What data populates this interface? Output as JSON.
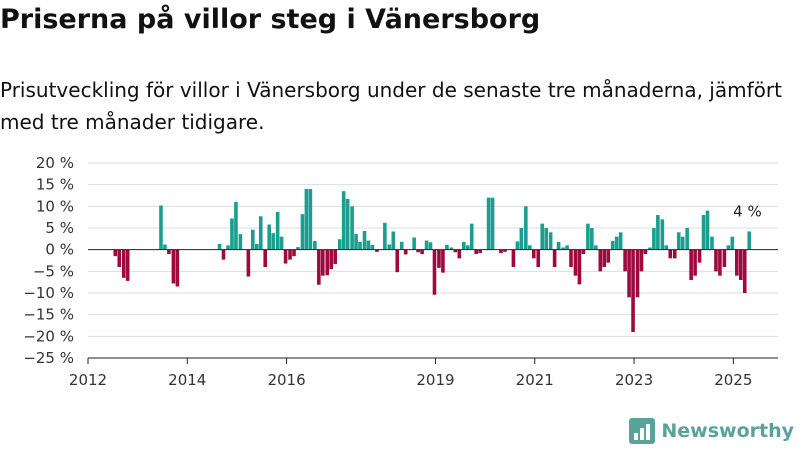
{
  "title": "Priserna på villor steg i Vänersborg",
  "subtitle": "Prisutveckling för villor i Vänersborg under de senaste tre månaderna, jämfört med tre månader tidigare.",
  "brand": {
    "name": "Newsworthy",
    "color": "#5aa39a"
  },
  "chart_data": {
    "type": "bar",
    "title": "Priserna på villor steg i Vänersborg",
    "subtitle": "Prisutveckling för villor i Vänersborg under de senaste tre månaderna, jämfört med tre månader tidigare.",
    "xlabel": "",
    "ylabel": "",
    "ylim": [
      -25,
      20
    ],
    "yticks": [
      20,
      15,
      10,
      5,
      0,
      -5,
      -10,
      -15,
      -20,
      -25
    ],
    "ytick_labels": [
      "20 %",
      "15 %",
      "10 %",
      "5 %",
      "0 %",
      "−5 %",
      "−10 %",
      "−15 %",
      "−20 %",
      "−25 %"
    ],
    "xlim": [
      2012,
      2025.9
    ],
    "xticks": [
      2012,
      2014,
      2016,
      2019,
      2021,
      2023,
      2025
    ],
    "xtick_labels": [
      "2012",
      "2014",
      "2016",
      "2019",
      "2021",
      "2023",
      "2025"
    ],
    "grid": true,
    "colors": {
      "positive": "#1a9e8f",
      "negative": "#9e0a3e"
    },
    "annotation": {
      "text": "4 %",
      "x": 2025.25,
      "y": 4
    },
    "x": [
      2012.55,
      2012.63,
      2012.72,
      2012.8,
      2013.47,
      2013.55,
      2013.63,
      2013.72,
      2013.8,
      2014.65,
      2014.73,
      2014.82,
      2014.9,
      2014.98,
      2015.07,
      2015.23,
      2015.32,
      2015.4,
      2015.48,
      2015.57,
      2015.65,
      2015.73,
      2015.82,
      2015.9,
      2015.98,
      2016.07,
      2016.15,
      2016.23,
      2016.32,
      2016.4,
      2016.48,
      2016.57,
      2016.65,
      2016.73,
      2016.82,
      2016.9,
      2016.98,
      2017.07,
      2017.15,
      2017.23,
      2017.32,
      2017.4,
      2017.48,
      2017.57,
      2017.65,
      2017.73,
      2017.82,
      2017.98,
      2018.07,
      2018.15,
      2018.23,
      2018.32,
      2018.4,
      2018.57,
      2018.65,
      2018.73,
      2018.82,
      2018.9,
      2018.98,
      2019.07,
      2019.15,
      2019.23,
      2019.32,
      2019.4,
      2019.48,
      2019.57,
      2019.65,
      2019.73,
      2019.82,
      2019.9,
      2020.07,
      2020.15,
      2020.32,
      2020.4,
      2020.57,
      2020.65,
      2020.73,
      2020.82,
      2020.9,
      2020.98,
      2021.07,
      2021.15,
      2021.23,
      2021.32,
      2021.4,
      2021.48,
      2021.57,
      2021.65,
      2021.73,
      2021.82,
      2021.9,
      2021.98,
      2022.07,
      2022.15,
      2022.23,
      2022.32,
      2022.4,
      2022.48,
      2022.57,
      2022.65,
      2022.73,
      2022.82,
      2022.9,
      2022.98,
      2023.07,
      2023.15,
      2023.23,
      2023.32,
      2023.4,
      2023.48,
      2023.57,
      2023.65,
      2023.73,
      2023.82,
      2023.9,
      2023.98,
      2024.07,
      2024.15,
      2024.23,
      2024.32,
      2024.4,
      2024.48,
      2024.57,
      2024.65,
      2024.73,
      2024.82,
      2024.9,
      2024.98,
      2025.07,
      2025.15,
      2025.23,
      2025.32
    ],
    "values": [
      -1.5,
      -4,
      -6.5,
      -7.2,
      10.2,
      1.2,
      -1,
      -7.8,
      -8.5,
      1.3,
      -2.3,
      1,
      7.2,
      11,
      3.6,
      -6.2,
      4.6,
      1.3,
      7.7,
      -4,
      5.8,
      3.8,
      8.7,
      3,
      -3.2,
      -2.3,
      -1.5,
      0.6,
      8.2,
      14,
      14,
      2,
      -8.1,
      -6,
      -5.9,
      -4.5,
      -3.3,
      2.4,
      13.5,
      11.7,
      10,
      3.6,
      1.8,
      4.3,
      2.1,
      1.1,
      -0.5,
      6.2,
      1.2,
      4.2,
      -5.2,
      1.8,
      -1.1,
      2.8,
      -0.6,
      -1,
      2.1,
      1.7,
      -10.4,
      -4.2,
      -5.3,
      1.1,
      0.5,
      -0.6,
      -2,
      1.8,
      1,
      6,
      -1,
      -0.8,
      12,
      12,
      -0.8,
      -0.5,
      -4,
      1.9,
      5,
      10,
      1,
      -2,
      -4,
      6,
      5,
      4,
      -4,
      1.8,
      0.5,
      1,
      -4,
      -6,
      -8,
      -1,
      6,
      5,
      1,
      -5,
      -4,
      -3,
      2,
      3,
      4,
      -5,
      -11,
      -19,
      -11,
      -5,
      -1,
      0.5,
      5,
      8,
      7,
      1,
      -2,
      -2,
      4,
      3,
      5,
      -7,
      -6,
      -3,
      8,
      9,
      3,
      -5,
      -6,
      -4,
      1,
      3,
      -6,
      -7,
      -10,
      4.2
    ]
  }
}
